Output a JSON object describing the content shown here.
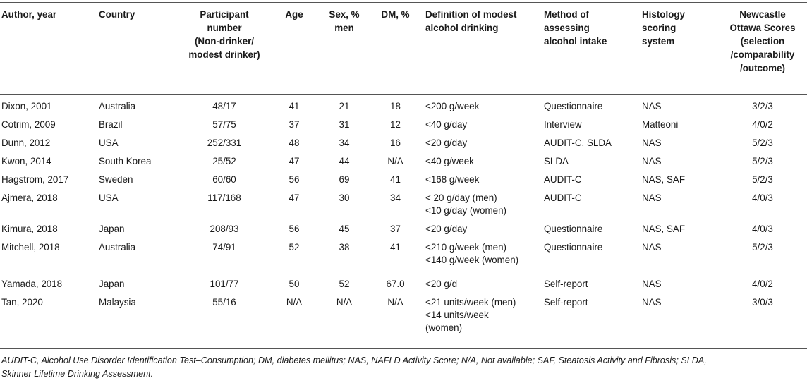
{
  "headers": {
    "author": "Author, year",
    "country": "Country",
    "participants": [
      "Participant",
      "number",
      "(Non-drinker/",
      "modest drinker)"
    ],
    "age": "Age",
    "sex": [
      "Sex, %",
      "men"
    ],
    "dm": "DM, %",
    "definition": [
      "Definition of modest",
      "alcohol drinking"
    ],
    "method": [
      "Method of",
      "assessing",
      "alcohol intake"
    ],
    "histology": [
      "Histology",
      "scoring",
      "system"
    ],
    "nos": [
      "Newcastle",
      "Ottawa Scores",
      "(selection",
      "/comparability",
      "/outcome)"
    ]
  },
  "rows": [
    {
      "author": "Dixon, 2001",
      "country": "Australia",
      "participants": "48/17",
      "age": "41",
      "sex": "21",
      "dm": "18",
      "definition": [
        "<200 g/week"
      ],
      "method": "Questionnaire",
      "histology": "NAS",
      "nos": "3/2/3"
    },
    {
      "author": "Cotrim, 2009",
      "country": "Brazil",
      "participants": "57/75",
      "age": "37",
      "sex": "31",
      "dm": "12",
      "definition": [
        "<40 g/day"
      ],
      "method": "Interview",
      "histology": "Matteoni",
      "nos": "4/0/2"
    },
    {
      "author": "Dunn, 2012",
      "country": "USA",
      "participants": "252/331",
      "age": "48",
      "sex": "34",
      "dm": "16",
      "definition": [
        "<20 g/day"
      ],
      "method": "AUDIT-C, SLDA",
      "histology": "NAS",
      "nos": "5/2/3"
    },
    {
      "author": "Kwon, 2014",
      "country": "South Korea",
      "participants": "25/52",
      "age": "47",
      "sex": "44",
      "dm": "N/A",
      "definition": [
        "<40 g/week"
      ],
      "method": "SLDA",
      "histology": "NAS",
      "nos": "5/2/3"
    },
    {
      "author": "Hagstrom, 2017",
      "country": "Sweden",
      "participants": "60/60",
      "age": "56",
      "sex": "69",
      "dm": "41",
      "definition": [
        "<168 g/week"
      ],
      "method": "AUDIT-C",
      "histology": "NAS, SAF",
      "nos": "5/2/3"
    },
    {
      "author": "Ajmera, 2018",
      "country": "USA",
      "participants": "117/168",
      "age": "47",
      "sex": "30",
      "dm": "34",
      "definition": [
        "< 20 g/day (men)",
        "<10 g/day (women)"
      ],
      "method": "AUDIT-C",
      "histology": "NAS",
      "nos": "4/0/3"
    },
    {
      "author": "Kimura, 2018",
      "country": "Japan",
      "participants": "208/93",
      "age": "56",
      "sex": "45",
      "dm": "37",
      "definition": [
        "<20 g/day"
      ],
      "method": "Questionnaire",
      "histology": "NAS, SAF",
      "nos": "4/0/3"
    },
    {
      "author": "Mitchell, 2018",
      "country": "Australia",
      "participants": "74/91",
      "age": "52",
      "sex": "38",
      "dm": "41",
      "definition": [
        "<210 g/week (men)",
        "<140 g/week (women)"
      ],
      "method": "Questionnaire",
      "histology": "NAS",
      "nos": "5/2/3"
    },
    {
      "author": "Yamada, 2018",
      "country": "Japan",
      "participants": "101/77",
      "age": "50",
      "sex": "52",
      "dm": "67.0",
      "definition": [
        "<20 g/d"
      ],
      "method": "Self-report",
      "histology": "NAS",
      "nos": "4/0/2"
    },
    {
      "author": "Tan, 2020",
      "country": "Malaysia",
      "participants": "55/16",
      "age": "N/A",
      "sex": "N/A",
      "dm": "N/A",
      "definition": [
        "<21 units/week (men)",
        "<14 units/week",
        "(women)"
      ],
      "method": "Self-report",
      "histology": "NAS",
      "nos": "3/0/3"
    }
  ],
  "footnote": [
    "AUDIT-C, Alcohol Use Disorder Identification Test–Consumption; DM, diabetes mellitus; NAS, NAFLD Activity Score; N/A, Not available; SAF, Steatosis Activity and Fibrosis; SLDA,",
    "Skinner Lifetime Drinking Assessment."
  ]
}
